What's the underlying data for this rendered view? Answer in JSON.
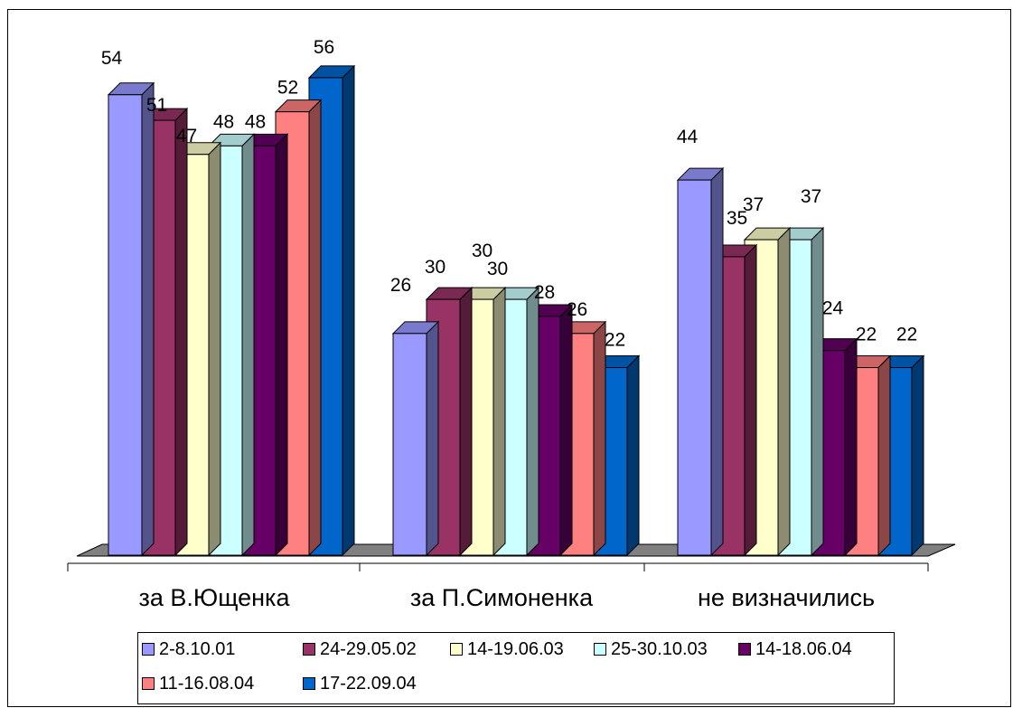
{
  "chart_data": {
    "type": "bar",
    "title": "",
    "xlabel": "",
    "ylabel": "",
    "ylim": [
      0,
      60
    ],
    "grid": false,
    "legend_position": "bottom",
    "categories": [
      "за В.Ющенка",
      "за П.Симоненка",
      "не визначились"
    ],
    "series": [
      {
        "name": "2-8.10.01",
        "color": "#9999ff",
        "values": [
          54,
          26,
          44
        ]
      },
      {
        "name": "24-29.05.02",
        "color": "#993366",
        "values": [
          51,
          30,
          35
        ]
      },
      {
        "name": "14-19.06.03",
        "color": "#ffffcc",
        "values": [
          47,
          30,
          37
        ]
      },
      {
        "name": "25-30.10.03",
        "color": "#ccffff",
        "values": [
          48,
          30,
          37
        ]
      },
      {
        "name": "14-18.06.04",
        "color": "#660066",
        "values": [
          48,
          28,
          24
        ]
      },
      {
        "name": "11-16.08.04",
        "color": "#ff8080",
        "values": [
          52,
          26,
          22
        ]
      },
      {
        "name": "17-22.09.04",
        "color": "#0066cc",
        "values": [
          56,
          22,
          22
        ]
      }
    ]
  }
}
